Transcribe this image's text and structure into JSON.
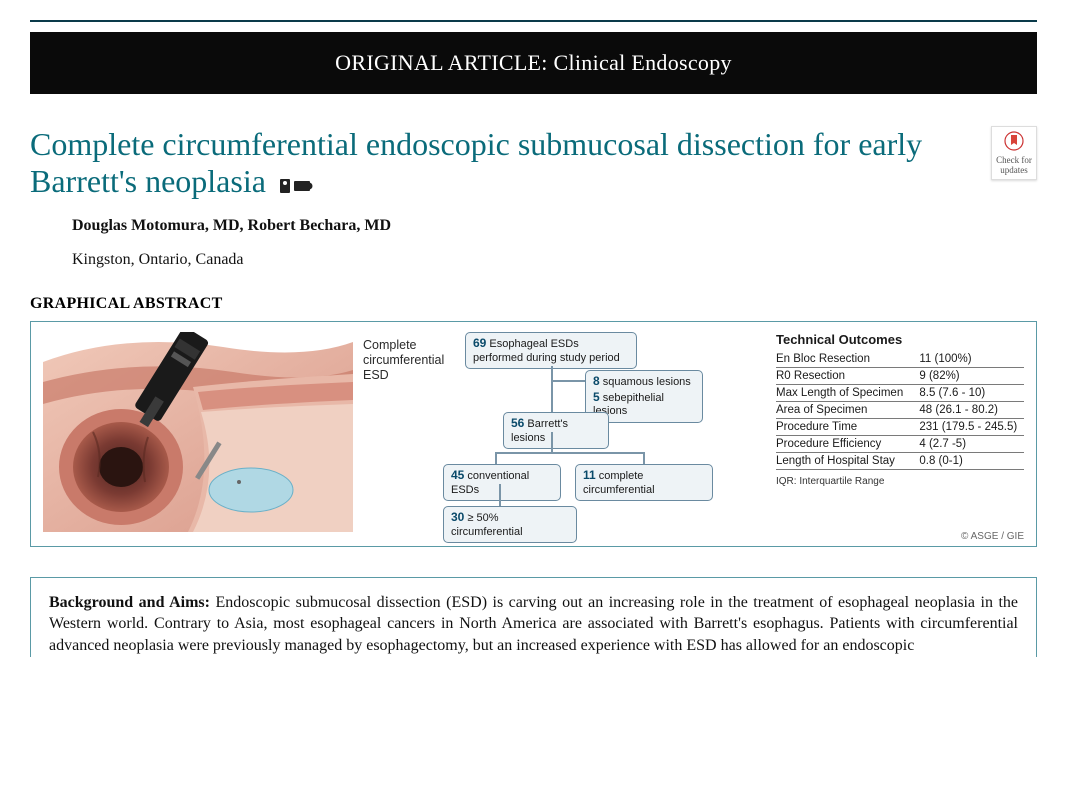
{
  "banner": {
    "label": "ORIGINAL ARTICLE: Clinical Endoscopy"
  },
  "title": "Complete circumferential endoscopic submucosal dissection for early Barrett's neoplasia",
  "update_badge": {
    "label": "Check for updates"
  },
  "authors": "Douglas Motomura, MD, Robert Bechara, MD",
  "affiliation": "Kingston, Ontario, Canada",
  "sections": {
    "graphical_abstract_head": "GRAPHICAL ABSTRACT",
    "bg_aims_head": "Background and Aims:"
  },
  "graphical_abstract": {
    "procedure_label": "Complete circumferential ESD",
    "flow": {
      "n1": {
        "count": "69",
        "text": "Esophageal ESDs performed during study period"
      },
      "n2a": {
        "count": "8",
        "text": "squamous lesions"
      },
      "n2b": {
        "count": "5",
        "text": "sebepithelial lesions"
      },
      "n3": {
        "count": "56",
        "text": "Barrett's lesions"
      },
      "n4a": {
        "count": "45",
        "text": "conventional ESDs"
      },
      "n4b": {
        "count": "11",
        "text": "complete circumferential"
      },
      "n5": {
        "count": "30",
        "text": "≥ 50% circumferential"
      }
    },
    "outcomes": {
      "title": "Technical Outcomes",
      "rows": [
        {
          "label": "En Bloc Resection",
          "value": "11 (100%)"
        },
        {
          "label": "R0 Resection",
          "value": "9 (82%)"
        },
        {
          "label": "Max Length of Specimen",
          "value": "8.5 (7.6 - 10)"
        },
        {
          "label": "Area of Specimen",
          "value": "48 (26.1 - 80.2)"
        },
        {
          "label": "Procedure Time",
          "value": "231 (179.5 - 245.5)"
        },
        {
          "label": "Procedure Efficiency",
          "value": "4 (2.7 -5)"
        },
        {
          "label": "Length of Hospital Stay",
          "value": "0.8 (0-1)"
        }
      ],
      "iqr_note": "IQR: Interquartile Range"
    },
    "copyright": "© ASGE / GIE",
    "illustration_colors": {
      "tissue_outer": "#e8b8a8",
      "tissue_inner": "#c97a6a",
      "tissue_deep": "#7a3a32",
      "injection_fluid": "#a8d8e8",
      "scope_body": "#1a1a1a",
      "scope_tip": "#c0c0c0"
    }
  },
  "abstract_text": "Endoscopic submucosal dissection (ESD) is carving out an increasing role in the treatment of esophageal neoplasia in the Western world. Contrary to Asia, most esophageal cancers in North America are associated with Barrett's esophagus. Patients with circumferential advanced neoplasia were previously managed by esophagectomy, but an increased experience with ESD has allowed for an endoscopic"
}
